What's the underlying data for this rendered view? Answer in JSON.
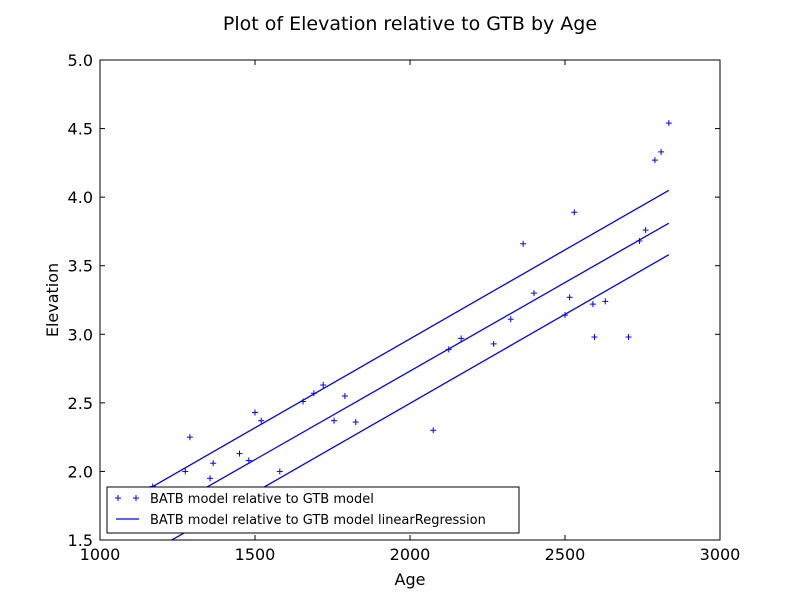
{
  "chart_data": {
    "type": "scatter",
    "title": "Plot of Elevation relative to GTB by Age",
    "xlabel": "Age",
    "ylabel": "Elevation",
    "xlim": [
      1000,
      3000
    ],
    "ylim": [
      1.5,
      5.0
    ],
    "xticks": [
      1000,
      1500,
      2000,
      2500,
      3000
    ],
    "xtick_labels": [
      "1000",
      "1500",
      "2000",
      "2500",
      "3000"
    ],
    "yticks": [
      1.5,
      2.0,
      2.5,
      3.0,
      3.5,
      4.0,
      4.5,
      5.0
    ],
    "ytick_labels": [
      "1.5",
      "2.0",
      "2.5",
      "3.0",
      "3.5",
      "4.0",
      "4.5",
      "5.0"
    ],
    "grid": false,
    "legend_position": "bottom-left",
    "colors": {
      "series": "#0000ff",
      "axes": "#000000"
    },
    "series": [
      {
        "name": "BATB model relative to GTB model",
        "kind": "scatter",
        "marker": "+",
        "points": [
          [
            1170,
            1.89
          ],
          [
            1275,
            2.0
          ],
          [
            1290,
            2.25
          ],
          [
            1355,
            1.95
          ],
          [
            1365,
            2.06
          ],
          [
            1450,
            2.13
          ],
          [
            1480,
            2.08
          ],
          [
            1500,
            2.43
          ],
          [
            1520,
            2.37
          ],
          [
            1580,
            2.0
          ],
          [
            1655,
            2.51
          ],
          [
            1690,
            2.57
          ],
          [
            1720,
            2.63
          ],
          [
            1755,
            2.37
          ],
          [
            1790,
            2.55
          ],
          [
            1825,
            2.36
          ],
          [
            2075,
            2.3
          ],
          [
            2125,
            2.89
          ],
          [
            2165,
            2.97
          ],
          [
            2270,
            2.93
          ],
          [
            2325,
            3.11
          ],
          [
            2365,
            3.66
          ],
          [
            2400,
            3.3
          ],
          [
            2500,
            3.14
          ],
          [
            2515,
            3.27
          ],
          [
            2530,
            3.89
          ],
          [
            2590,
            3.22
          ],
          [
            2595,
            2.98
          ],
          [
            2630,
            3.24
          ],
          [
            2705,
            2.98
          ],
          [
            2740,
            3.68
          ],
          [
            2760,
            3.76
          ],
          [
            2790,
            4.27
          ],
          [
            2810,
            4.33
          ],
          [
            2835,
            4.54
          ]
        ]
      },
      {
        "name": "BATB model relative to GTB model linearRegression",
        "kind": "lines",
        "lines": [
          {
            "x": [
              1170,
              2835
            ],
            "y": [
              1.89,
              4.05
            ]
          },
          {
            "x": [
              1170,
              2835
            ],
            "y": [
              1.66,
              3.81
            ]
          },
          {
            "x": [
              1170,
              2835
            ],
            "y": [
              1.42,
              3.58
            ]
          }
        ]
      }
    ]
  }
}
